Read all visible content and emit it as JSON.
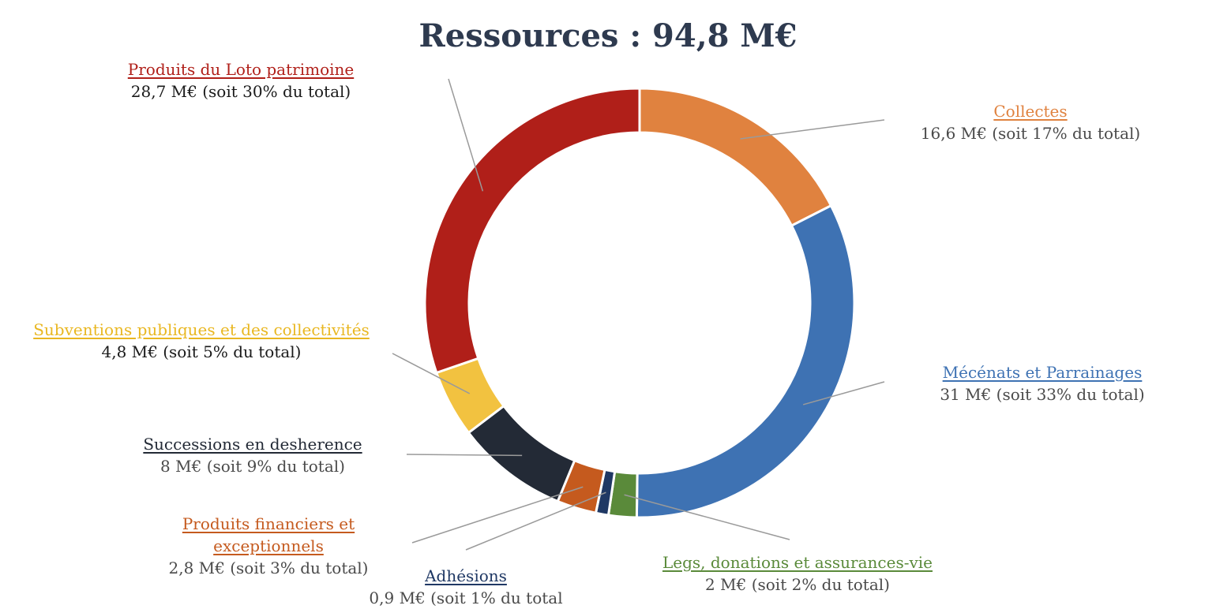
{
  "chart_data": {
    "type": "pie",
    "donut": true,
    "title": "Ressources : 94,8 M€",
    "slices": [
      {
        "name": "Collectes",
        "value": 16.6,
        "value_text": "16,6 M€ (soit 17% du total)",
        "color": "#e0823f"
      },
      {
        "name": "Mécénats et Parrainages",
        "value": 31.0,
        "value_text": "31 M€ (soit 33% du total)",
        "color": "#3e72b3"
      },
      {
        "name": "Legs, donations et assurances-vie",
        "value": 2.0,
        "value_text": "2 M€ (soit 2% du total)",
        "color": "#5a8a3a"
      },
      {
        "name": "Adhésions",
        "value": 0.9,
        "value_text": "0,9 M€ (soit 1% du total",
        "color": "#1f3864"
      },
      {
        "name": "Produits financiers et exceptionnels",
        "value": 2.8,
        "value_text": "2,8 M€ (soit 3% du total)",
        "color": "#c55a1e"
      },
      {
        "name": "Successions en desherence",
        "value": 8.0,
        "value_text": "8 M€ (soit 9% du total)",
        "color": "#232a36"
      },
      {
        "name": "Subventions publiques et des collectivités",
        "value": 4.8,
        "value_text": "4,8 M€ (soit 5% du total)",
        "color": "#f2c240"
      },
      {
        "name": "Produits du Loto patrimoine",
        "value": 28.7,
        "value_text": "28,7 M€ (soit 30% du total)",
        "color": "#b01f19"
      }
    ]
  }
}
